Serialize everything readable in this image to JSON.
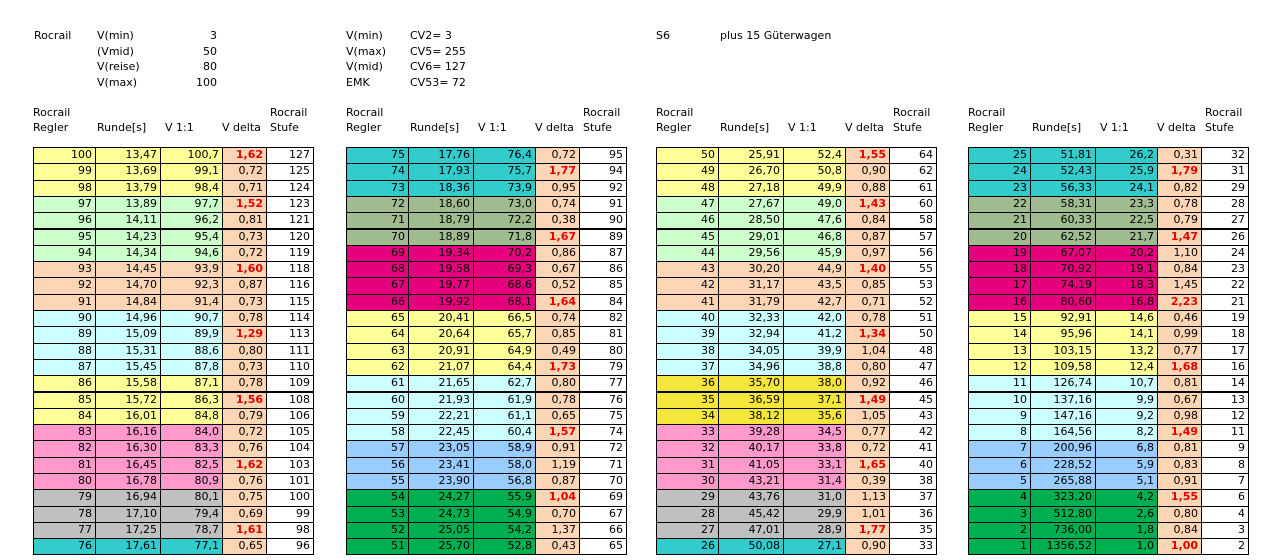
{
  "info": {
    "left": {
      "title": "Rocrail",
      "rows": [
        [
          "V(min)",
          3
        ],
        [
          "(Vmid)",
          50
        ],
        [
          "V(reise)",
          80
        ],
        [
          "V(max)",
          100
        ]
      ]
    },
    "middle": {
      "rows": [
        [
          "V(min)",
          "CV2= 3"
        ],
        [
          "V(max)",
          "CV5= 255"
        ],
        [
          "V(mid)",
          "CV6= 127"
        ],
        [
          "EMK",
          "CV53= 72"
        ]
      ]
    },
    "right": [
      "S6",
      "plus 15 Güterwagen"
    ]
  },
  "tables": [
    {
      "headers": [
        "Rocrail\nRegler",
        "Runde[s]",
        "V 1:1",
        "V delta",
        "Rocrail\nStufe"
      ],
      "rows": [
        [
          100,
          "13,47",
          "100,7",
          "1,62",
          127
        ],
        [
          99,
          "13,69",
          "99,1",
          "0,72",
          125
        ],
        [
          98,
          "13,79",
          "98,4",
          "0,71",
          124
        ],
        [
          97,
          "13,89",
          "97,7",
          "1,52",
          123
        ],
        [
          96,
          "14,11",
          "96,2",
          "0,81",
          121
        ],
        [
          95,
          "14,23",
          "95,4",
          "0,73",
          120
        ],
        [
          94,
          "14,34",
          "94,6",
          "0,72",
          119
        ],
        [
          93,
          "14,45",
          "93,9",
          "1,60",
          118
        ],
        [
          92,
          "14,70",
          "92,3",
          "0,87",
          116
        ],
        [
          91,
          "14,84",
          "91,4",
          "0,73",
          115
        ],
        [
          90,
          "14,96",
          "90,7",
          "0,78",
          114
        ],
        [
          89,
          "15,09",
          "89,9",
          "1,29",
          113
        ],
        [
          88,
          "15,31",
          "88,6",
          "0,80",
          111
        ],
        [
          87,
          "15,45",
          "87,8",
          "0,73",
          110
        ],
        [
          86,
          "15,58",
          "87,1",
          "0,78",
          109
        ],
        [
          85,
          "15,72",
          "86,3",
          "1,56",
          108
        ],
        [
          84,
          "16,01",
          "84,8",
          "0,79",
          106
        ],
        [
          83,
          "16,16",
          "84,0",
          "0,72",
          105
        ],
        [
          82,
          "16,30",
          "83,3",
          "0,76",
          104
        ],
        [
          81,
          "16,45",
          "82,5",
          "1,62",
          103
        ],
        [
          80,
          "16,78",
          "80,9",
          "0,76",
          101
        ],
        [
          79,
          "16,94",
          "80,1",
          "0,75",
          100
        ],
        [
          78,
          "17,10",
          "79,4",
          "0,69",
          99
        ],
        [
          77,
          "17,25",
          "78,7",
          "1,61",
          98
        ],
        [
          76,
          "17,61",
          "77,1",
          "0,65",
          96
        ]
      ],
      "row_colors": [
        "#ffff99",
        "#ffff99",
        "#ffff99",
        "#ccffcc",
        "#ccffcc",
        "#ccffcc",
        "#ccffcc",
        "#fcd5b4",
        "#fcd5b4",
        "#fcd5b4",
        "#ccffff",
        "#ccffff",
        "#ccffff",
        "#ccffff",
        "#ffff99",
        "#ffff99",
        "#ffff99",
        "#ff99cc",
        "#ff99cc",
        "#ff99cc",
        "#ff99cc",
        "#c0c0c0",
        "#c0c0c0",
        "#c0c0c0",
        "#33cccc"
      ],
      "emphasis_rows": [
        0,
        3,
        7,
        11,
        15,
        19,
        23
      ]
    },
    {
      "headers": [
        "Rocrail\nRegler",
        "Runde[s]",
        "V 1:1",
        "V delta",
        "Rocrail\nStufe"
      ],
      "rows": [
        [
          75,
          "17,76",
          "76,4",
          "0,72",
          95
        ],
        [
          74,
          "17,93",
          "75,7",
          "1,77",
          94
        ],
        [
          73,
          "18,36",
          "73,9",
          "0,95",
          92
        ],
        [
          72,
          "18,60",
          "73,0",
          "0,74",
          91
        ],
        [
          71,
          "18,79",
          "72,2",
          "0,38",
          90
        ],
        [
          70,
          "18,89",
          "71,8",
          "1,67",
          89
        ],
        [
          69,
          "19,34",
          "70,2",
          "0,86",
          87
        ],
        [
          68,
          "19,58",
          "69,3",
          "0,67",
          86
        ],
        [
          67,
          "19,77",
          "68,6",
          "0,52",
          85
        ],
        [
          66,
          "19,92",
          "68,1",
          "1,64",
          84
        ],
        [
          65,
          "20,41",
          "66,5",
          "0,74",
          82
        ],
        [
          64,
          "20,64",
          "65,7",
          "0,85",
          81
        ],
        [
          63,
          "20,91",
          "64,9",
          "0,49",
          80
        ],
        [
          62,
          "21,07",
          "64,4",
          "1,73",
          79
        ],
        [
          61,
          "21,65",
          "62,7",
          "0,80",
          77
        ],
        [
          60,
          "21,93",
          "61,9",
          "0,78",
          76
        ],
        [
          59,
          "22,21",
          "61,1",
          "0,65",
          75
        ],
        [
          58,
          "22,45",
          "60,4",
          "1,57",
          74
        ],
        [
          57,
          "23,05",
          "58,9",
          "0,91",
          72
        ],
        [
          56,
          "23,41",
          "58,0",
          "1,19",
          71
        ],
        [
          55,
          "23,90",
          "56,8",
          "0,87",
          70
        ],
        [
          54,
          "24,27",
          "55,9",
          "1,04",
          69
        ],
        [
          53,
          "24,73",
          "54,9",
          "0,70",
          67
        ],
        [
          52,
          "25,05",
          "54,2",
          "1,37",
          66
        ],
        [
          51,
          "25,70",
          "52,8",
          "0,43",
          65
        ]
      ],
      "row_colors": [
        "#33cccc",
        "#33cccc",
        "#33cccc",
        "#9fbb8f",
        "#9fbb8f",
        "#9fbb8f",
        "#e6007e",
        "#e6007e",
        "#e6007e",
        "#e6007e",
        "#ffff99",
        "#ffff99",
        "#ffff99",
        "#ffff99",
        "#ccffff",
        "#ccffff",
        "#ccffff",
        "#ccffff",
        "#99ccff",
        "#99ccff",
        "#99ccff",
        "#00b050",
        "#00b050",
        "#00b050",
        "#00b050"
      ],
      "emphasis_rows": [
        1,
        5,
        9,
        13,
        17,
        21
      ]
    },
    {
      "headers": [
        "Rocrail\nRegler",
        "Runde[s]",
        "V 1:1",
        "V delta",
        "Rocrail\nStufe"
      ],
      "rows": [
        [
          50,
          "25,91",
          "52,4",
          "1,55",
          64
        ],
        [
          49,
          "26,70",
          "50,8",
          "0,90",
          62
        ],
        [
          48,
          "27,18",
          "49,9",
          "0,88",
          61
        ],
        [
          47,
          "27,67",
          "49,0",
          "1,43",
          60
        ],
        [
          46,
          "28,50",
          "47,6",
          "0,84",
          58
        ],
        [
          45,
          "29,01",
          "46,8",
          "0,87",
          57
        ],
        [
          44,
          "29,56",
          "45,9",
          "0,97",
          56
        ],
        [
          43,
          "30,20",
          "44,9",
          "1,40",
          55
        ],
        [
          42,
          "31,17",
          "43,5",
          "0,85",
          53
        ],
        [
          41,
          "31,79",
          "42,7",
          "0,71",
          52
        ],
        [
          40,
          "32,33",
          "42,0",
          "0,78",
          51
        ],
        [
          39,
          "32,94",
          "41,2",
          "1,34",
          50
        ],
        [
          38,
          "34,05",
          "39,9",
          "1,04",
          48
        ],
        [
          37,
          "34,96",
          "38,8",
          "0,80",
          47
        ],
        [
          36,
          "35,70",
          "38,0",
          "0,92",
          46
        ],
        [
          35,
          "36,59",
          "37,1",
          "1,49",
          45
        ],
        [
          34,
          "38,12",
          "35,6",
          "1,05",
          43
        ],
        [
          33,
          "39,28",
          "34,5",
          "0,77",
          42
        ],
        [
          32,
          "40,17",
          "33,8",
          "0,72",
          41
        ],
        [
          31,
          "41,05",
          "33,1",
          "1,65",
          40
        ],
        [
          30,
          "43,21",
          "31,4",
          "0,39",
          38
        ],
        [
          29,
          "43,76",
          "31,0",
          "1,13",
          37
        ],
        [
          28,
          "45,42",
          "29,9",
          "1,01",
          36
        ],
        [
          27,
          "47,01",
          "28,9",
          "1,77",
          35
        ],
        [
          26,
          "50,08",
          "27,1",
          "0,90",
          33
        ]
      ],
      "row_colors": [
        "#ffff99",
        "#ffff99",
        "#ffff99",
        "#ccffcc",
        "#ccffcc",
        "#ccffcc",
        "#ccffcc",
        "#fcd5b4",
        "#fcd5b4",
        "#fcd5b4",
        "#ccffff",
        "#ccffff",
        "#ccffff",
        "#ccffff",
        "#f5e63b",
        "#f5e63b",
        "#f5e63b",
        "#ff99cc",
        "#ff99cc",
        "#ff99cc",
        "#ff99cc",
        "#c0c0c0",
        "#c0c0c0",
        "#c0c0c0",
        "#33cccc"
      ],
      "emphasis_rows": [
        0,
        3,
        7,
        11,
        15,
        19,
        23
      ]
    },
    {
      "headers": [
        "Rocrail\nRegler",
        "Runde[s]",
        "V 1:1",
        "V delta",
        "Rocrail\nStufe"
      ],
      "rows": [
        [
          25,
          "51,81",
          "26,2",
          "0,31",
          32
        ],
        [
          24,
          "52,43",
          "25,9",
          "1,79",
          31
        ],
        [
          23,
          "56,33",
          "24,1",
          "0,82",
          29
        ],
        [
          22,
          "58,31",
          "23,3",
          "0,78",
          28
        ],
        [
          21,
          "60,33",
          "22,5",
          "0,79",
          27
        ],
        [
          20,
          "62,52",
          "21,7",
          "1,47",
          26
        ],
        [
          19,
          "67,07",
          "20,2",
          "1,10",
          24
        ],
        [
          18,
          "70,92",
          "19,1",
          "0,84",
          23
        ],
        [
          17,
          "74,19",
          "18,3",
          "1,45",
          22
        ],
        [
          16,
          "80,60",
          "16,8",
          "2,23",
          21
        ],
        [
          15,
          "92,91",
          "14,6",
          "0,46",
          19
        ],
        [
          14,
          "95,96",
          "14,1",
          "0,99",
          18
        ],
        [
          13,
          "103,15",
          "13,2",
          "0,77",
          17
        ],
        [
          12,
          "109,58",
          "12,4",
          "1,68",
          16
        ],
        [
          11,
          "126,74",
          "10,7",
          "0,81",
          14
        ],
        [
          10,
          "137,16",
          "9,9",
          "0,67",
          13
        ],
        [
          9,
          "147,16",
          "9,2",
          "0,98",
          12
        ],
        [
          8,
          "164,56",
          "8,2",
          "1,49",
          11
        ],
        [
          7,
          "200,96",
          "6,8",
          "0,81",
          9
        ],
        [
          6,
          "228,52",
          "5,9",
          "0,83",
          8
        ],
        [
          5,
          "265,88",
          "5,1",
          "0,91",
          7
        ],
        [
          4,
          "323,20",
          "4,2",
          "1,55",
          6
        ],
        [
          3,
          "512,80",
          "2,6",
          "0,80",
          4
        ],
        [
          2,
          "736,00",
          "1,8",
          "0,84",
          3
        ],
        [
          1,
          "1356,52",
          "1,0",
          "1,00",
          2
        ]
      ],
      "row_colors": [
        "#33cccc",
        "#33cccc",
        "#33cccc",
        "#9fbb8f",
        "#9fbb8f",
        "#9fbb8f",
        "#e6007e",
        "#e6007e",
        "#e6007e",
        "#e6007e",
        "#ffff99",
        "#ffff99",
        "#ffff99",
        "#ffff99",
        "#ccffff",
        "#ccffff",
        "#ccffff",
        "#ccffff",
        "#99ccff",
        "#99ccff",
        "#99ccff",
        "#00b050",
        "#00b050",
        "#00b050",
        "#00b050"
      ],
      "emphasis_rows": [
        1,
        5,
        9,
        13,
        17,
        21,
        24
      ]
    }
  ]
}
